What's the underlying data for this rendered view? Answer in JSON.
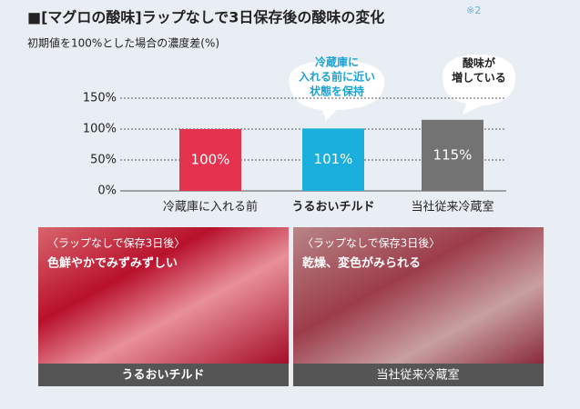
{
  "chart_data": {
    "type": "bar",
    "title": "■[マグロの酸味]ラップなしで3日保存後の酸味の変化",
    "title_note": "※2",
    "subtitle": "初期値を100%とした場合の濃度差(%)",
    "categories": [
      "冷蔵庫に入れる前",
      "うるおいチルド",
      "当社従来冷蔵室"
    ],
    "values": [
      100,
      101,
      115
    ],
    "value_labels": [
      "100%",
      "101%",
      "115%"
    ],
    "colors": [
      "#e5324f",
      "#1aafdc",
      "#737373"
    ],
    "ylim": [
      0,
      150
    ],
    "yticks": [
      {
        "value": 0,
        "label": "0%"
      },
      {
        "value": 50,
        "label": "50%"
      },
      {
        "value": 100,
        "label": "100%"
      },
      {
        "value": 150,
        "label": "150%"
      }
    ],
    "grid": true,
    "callouts": [
      {
        "lines": [
          "冷蔵庫に",
          "入れる前に近い",
          "状態を保持"
        ],
        "color": "#1aa3d6"
      },
      {
        "lines": [
          "酸味が",
          "増している"
        ],
        "color": "#222222"
      }
    ]
  },
  "photos": [
    {
      "caption": "〈ラップなしで保存3日後〉",
      "description": "色鮮やかでみずみずしい",
      "label": "うるおいチルド"
    },
    {
      "caption": "〈ラップなしで保存3日後〉",
      "description": "乾燥、変色がみられる",
      "label": "当社従来冷蔵室"
    }
  ]
}
